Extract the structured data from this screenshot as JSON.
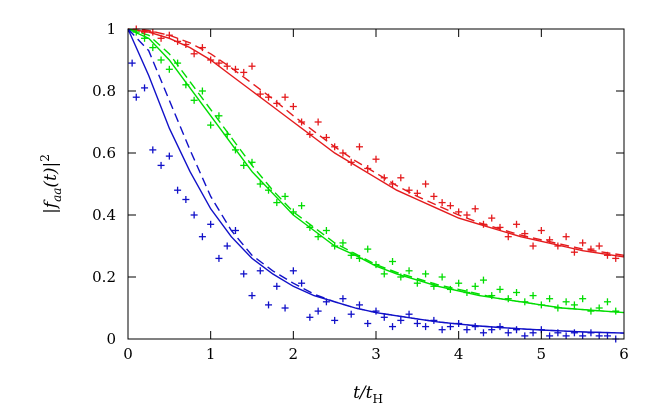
{
  "chart_data": {
    "type": "line",
    "xlabel": "t/t_H",
    "xlabel_main": "t/t",
    "xlabel_sub": "H",
    "ylabel": "|f_aa(t)|^2",
    "ylabel_parts": {
      "open": "|f",
      "sub": "aa",
      "mid": "(t)|",
      "sup": "2"
    },
    "xlim": [
      0,
      6
    ],
    "ylim": [
      0,
      1
    ],
    "xticks": [
      "0",
      "1",
      "2",
      "3",
      "4",
      "5",
      "6"
    ],
    "yticks": [
      "0",
      "0.2",
      "0.4",
      "0.6",
      "0.8",
      "1"
    ],
    "grid": false,
    "legend": "none",
    "series": [
      {
        "color": "#e41a1c",
        "solid_fit": {
          "x": [
            0,
            0.25,
            0.5,
            0.75,
            1,
            1.25,
            1.5,
            1.75,
            2,
            2.25,
            2.5,
            2.75,
            3,
            3.25,
            3.5,
            3.75,
            4,
            4.25,
            4.5,
            4.75,
            5,
            5.25,
            5.5,
            5.75,
            6
          ],
          "y": [
            1,
            0.99,
            0.97,
            0.94,
            0.9,
            0.85,
            0.8,
            0.75,
            0.7,
            0.65,
            0.6,
            0.56,
            0.52,
            0.48,
            0.45,
            0.42,
            0.39,
            0.37,
            0.35,
            0.33,
            0.315,
            0.3,
            0.285,
            0.275,
            0.265
          ]
        },
        "dashed_fit": {
          "x": [
            0,
            0.25,
            0.5,
            0.75,
            1,
            1.25,
            1.5,
            1.75,
            2,
            2.25,
            2.5,
            2.75,
            3,
            3.25,
            3.5,
            3.75,
            4,
            4.25,
            4.5,
            4.75,
            5,
            5.25,
            5.5,
            5.75,
            6
          ],
          "y": [
            1,
            0.995,
            0.98,
            0.955,
            0.92,
            0.875,
            0.825,
            0.775,
            0.72,
            0.67,
            0.62,
            0.575,
            0.535,
            0.495,
            0.46,
            0.43,
            0.4,
            0.375,
            0.355,
            0.335,
            0.32,
            0.305,
            0.29,
            0.28,
            0.27
          ]
        },
        "points": {
          "x": [
            0.1,
            0.2,
            0.3,
            0.4,
            0.5,
            0.6,
            0.7,
            0.8,
            0.9,
            1.0,
            1.1,
            1.2,
            1.3,
            1.4,
            1.5,
            1.6,
            1.7,
            1.8,
            1.9,
            2.0,
            2.1,
            2.2,
            2.3,
            2.4,
            2.5,
            2.6,
            2.7,
            2.8,
            2.9,
            3.0,
            3.1,
            3.2,
            3.3,
            3.4,
            3.5,
            3.6,
            3.7,
            3.8,
            3.9,
            4.0,
            4.1,
            4.2,
            4.3,
            4.4,
            4.5,
            4.6,
            4.7,
            4.8,
            4.9,
            5.0,
            5.1,
            5.2,
            5.3,
            5.4,
            5.5,
            5.6,
            5.7,
            5.8,
            5.9
          ],
          "y": [
            1.0,
            0.99,
            0.99,
            0.97,
            0.98,
            0.96,
            0.95,
            0.92,
            0.94,
            0.9,
            0.89,
            0.88,
            0.87,
            0.86,
            0.88,
            0.79,
            0.78,
            0.76,
            0.78,
            0.75,
            0.7,
            0.66,
            0.7,
            0.65,
            0.62,
            0.6,
            0.57,
            0.62,
            0.55,
            0.58,
            0.52,
            0.5,
            0.52,
            0.48,
            0.47,
            0.5,
            0.46,
            0.44,
            0.43,
            0.41,
            0.4,
            0.42,
            0.37,
            0.39,
            0.36,
            0.33,
            0.37,
            0.34,
            0.3,
            0.35,
            0.32,
            0.3,
            0.33,
            0.28,
            0.31,
            0.29,
            0.3,
            0.27,
            0.26
          ]
        }
      },
      {
        "color": "#00dd00",
        "solid_fit": {
          "x": [
            0,
            0.25,
            0.5,
            0.75,
            1,
            1.25,
            1.5,
            1.75,
            2,
            2.25,
            2.5,
            2.75,
            3,
            3.25,
            3.5,
            3.75,
            4,
            4.25,
            4.5,
            4.75,
            5,
            5.25,
            5.5,
            5.75,
            6
          ],
          "y": [
            1,
            0.97,
            0.9,
            0.81,
            0.72,
            0.63,
            0.54,
            0.47,
            0.4,
            0.35,
            0.3,
            0.27,
            0.235,
            0.21,
            0.19,
            0.17,
            0.155,
            0.14,
            0.13,
            0.12,
            0.11,
            0.1,
            0.095,
            0.09,
            0.085
          ]
        },
        "dashed_fit": {
          "x": [
            0,
            0.25,
            0.5,
            0.75,
            1,
            1.25,
            1.5,
            1.75,
            2,
            2.25,
            2.5,
            2.75,
            3,
            3.25,
            3.5,
            3.75,
            4,
            4.25,
            4.5,
            4.75,
            5,
            5.25,
            5.5,
            5.75,
            6
          ],
          "y": [
            1,
            0.98,
            0.92,
            0.83,
            0.74,
            0.65,
            0.56,
            0.48,
            0.41,
            0.36,
            0.31,
            0.275,
            0.24,
            0.215,
            0.195,
            0.175,
            0.16,
            0.145,
            0.13,
            0.12,
            0.11,
            0.1,
            0.095,
            0.09,
            0.085
          ]
        },
        "points": {
          "x": [
            0.1,
            0.2,
            0.3,
            0.4,
            0.5,
            0.6,
            0.7,
            0.8,
            0.9,
            1.0,
            1.1,
            1.2,
            1.3,
            1.4,
            1.5,
            1.6,
            1.7,
            1.8,
            1.9,
            2.0,
            2.1,
            2.2,
            2.3,
            2.4,
            2.5,
            2.6,
            2.7,
            2.8,
            2.9,
            3.0,
            3.1,
            3.2,
            3.3,
            3.4,
            3.5,
            3.6,
            3.7,
            3.8,
            3.9,
            4.0,
            4.1,
            4.2,
            4.3,
            4.4,
            4.5,
            4.6,
            4.7,
            4.8,
            4.9,
            5.0,
            5.1,
            5.2,
            5.3,
            5.4,
            5.5,
            5.6,
            5.7,
            5.8,
            5.9
          ],
          "y": [
            0.99,
            0.97,
            0.94,
            0.9,
            0.87,
            0.89,
            0.82,
            0.77,
            0.8,
            0.69,
            0.72,
            0.66,
            0.61,
            0.56,
            0.57,
            0.5,
            0.48,
            0.44,
            0.46,
            0.41,
            0.43,
            0.36,
            0.33,
            0.35,
            0.3,
            0.31,
            0.27,
            0.26,
            0.29,
            0.24,
            0.21,
            0.25,
            0.2,
            0.22,
            0.18,
            0.21,
            0.17,
            0.2,
            0.16,
            0.18,
            0.15,
            0.17,
            0.19,
            0.14,
            0.16,
            0.13,
            0.15,
            0.12,
            0.14,
            0.11,
            0.13,
            0.1,
            0.12,
            0.11,
            0.13,
            0.09,
            0.1,
            0.12,
            0.09
          ]
        }
      },
      {
        "color": "#1010c8",
        "solid_fit": {
          "x": [
            0,
            0.25,
            0.5,
            0.75,
            1,
            1.25,
            1.5,
            1.75,
            2,
            2.25,
            2.5,
            2.75,
            3,
            3.25,
            3.5,
            3.75,
            4,
            4.25,
            4.5,
            4.75,
            5,
            5.25,
            5.5,
            5.75,
            6
          ],
          "y": [
            1,
            0.85,
            0.68,
            0.54,
            0.42,
            0.33,
            0.26,
            0.21,
            0.17,
            0.14,
            0.12,
            0.1,
            0.085,
            0.075,
            0.065,
            0.055,
            0.048,
            0.042,
            0.037,
            0.033,
            0.029,
            0.026,
            0.023,
            0.021,
            0.019
          ]
        },
        "dashed_fit": {
          "x": [
            0,
            0.25,
            0.5,
            0.75,
            1,
            1.25,
            1.5,
            1.75,
            2,
            2.25,
            2.5,
            2.75,
            3,
            3.25,
            3.5,
            3.75,
            4,
            4.25,
            4.5,
            4.75,
            5,
            5.25,
            5.5,
            5.75,
            6
          ],
          "y": [
            1,
            0.93,
            0.77,
            0.61,
            0.46,
            0.35,
            0.27,
            0.22,
            0.18,
            0.145,
            0.12,
            0.1,
            0.085,
            0.075,
            0.065,
            0.055,
            0.048,
            0.042,
            0.037,
            0.033,
            0.029,
            0.026,
            0.023,
            0.021,
            0.019
          ]
        },
        "points": {
          "x": [
            0.05,
            0.1,
            0.2,
            0.3,
            0.4,
            0.5,
            0.6,
            0.7,
            0.8,
            0.9,
            1.0,
            1.1,
            1.2,
            1.3,
            1.4,
            1.5,
            1.6,
            1.7,
            1.8,
            1.9,
            2.0,
            2.1,
            2.2,
            2.3,
            2.4,
            2.5,
            2.6,
            2.7,
            2.8,
            2.9,
            3.0,
            3.1,
            3.2,
            3.3,
            3.4,
            3.5,
            3.6,
            3.7,
            3.8,
            3.9,
            4.0,
            4.1,
            4.2,
            4.3,
            4.4,
            4.5,
            4.6,
            4.7,
            4.8,
            4.9,
            5.0,
            5.1,
            5.2,
            5.3,
            5.4,
            5.5,
            5.6,
            5.7,
            5.8,
            5.9
          ],
          "y": [
            0.89,
            0.78,
            0.81,
            0.61,
            0.56,
            0.59,
            0.48,
            0.45,
            0.4,
            0.33,
            0.37,
            0.26,
            0.3,
            0.35,
            0.21,
            0.14,
            0.22,
            0.11,
            0.17,
            0.1,
            0.22,
            0.18,
            0.07,
            0.09,
            0.12,
            0.06,
            0.13,
            0.08,
            0.11,
            0.05,
            0.09,
            0.07,
            0.04,
            0.06,
            0.08,
            0.05,
            0.04,
            0.06,
            0.03,
            0.04,
            0.05,
            0.03,
            0.04,
            0.02,
            0.03,
            0.04,
            0.02,
            0.03,
            0.01,
            0.02,
            0.03,
            0.01,
            0.02,
            0.01,
            0.02,
            0.01,
            0.02,
            0.01,
            0.01,
            0.0
          ]
        }
      }
    ]
  }
}
